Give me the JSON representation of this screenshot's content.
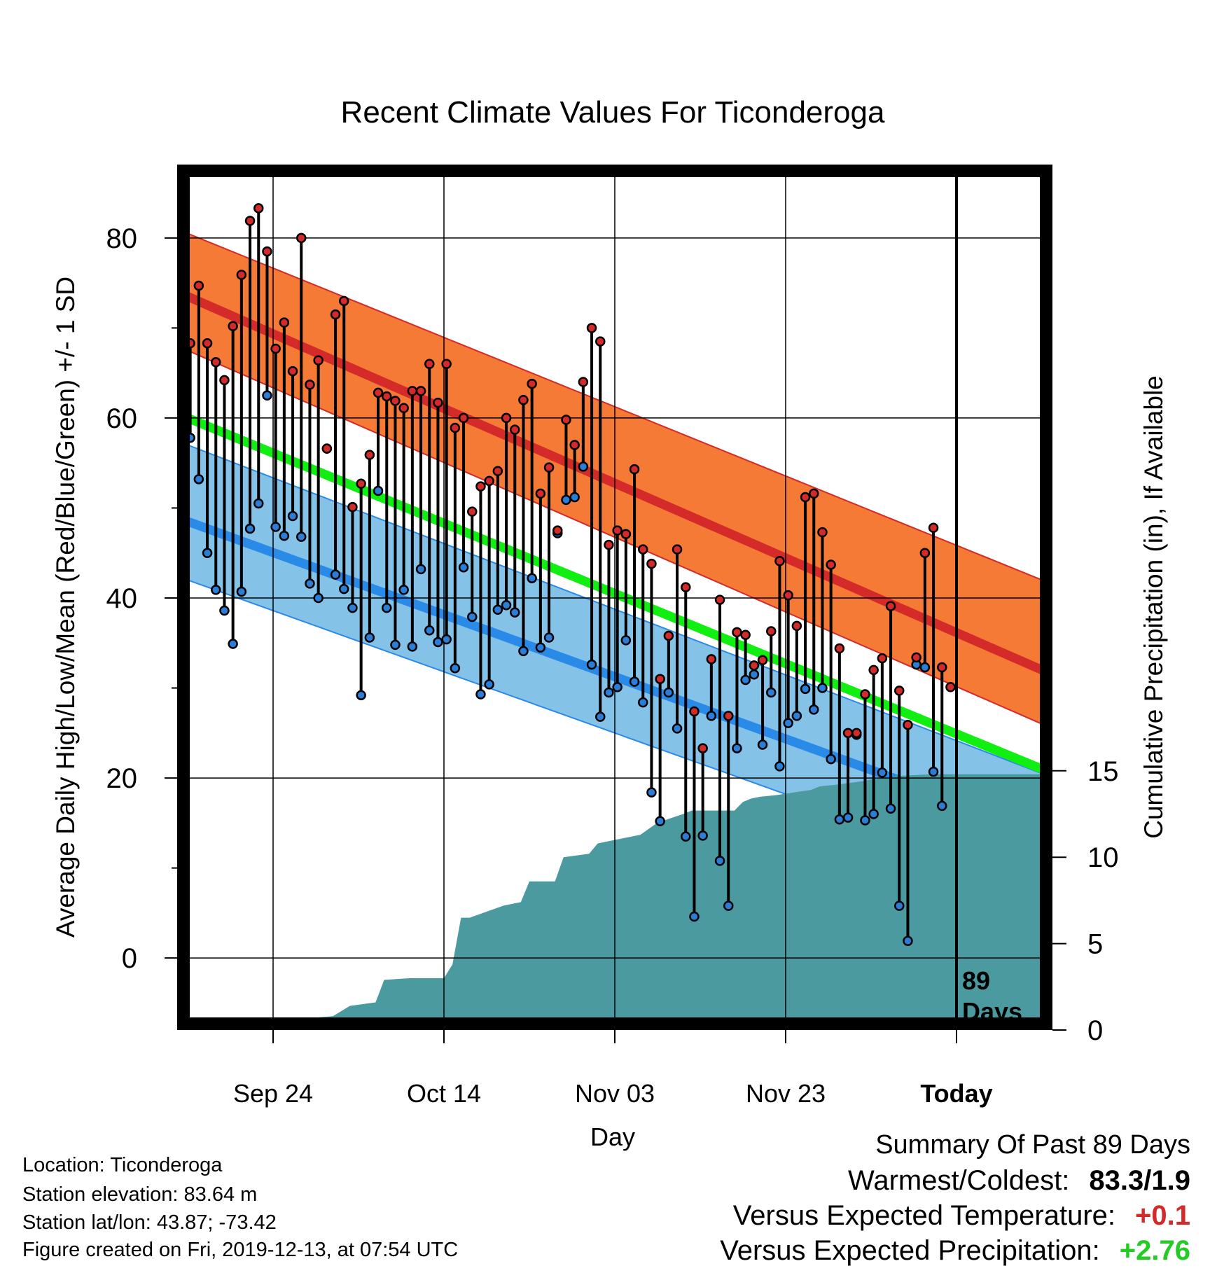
{
  "chart_data": {
    "type": "line",
    "title": "Recent Climate Values For Ticonderoga",
    "xlabel": "Day",
    "ylabel": "Average Daily High/Low/Mean (Red/Blue/Green) +/- 1 SD",
    "y2label": "Cumulative Precipitation (in), If Available",
    "x_ticks": [
      "Sep 24",
      "Oct 14",
      "Nov 03",
      "Nov 23",
      "Today"
    ],
    "x_tick_days": [
      10,
      30,
      50,
      70,
      90
    ],
    "x_range": [
      0,
      100
    ],
    "ylim": [
      -8,
      88
    ],
    "yticks": [
      0,
      20,
      40,
      60,
      80
    ],
    "y2lim": [
      0,
      50
    ],
    "y2ticks": [
      0,
      5,
      10,
      15
    ],
    "grid": true,
    "today_day": 90,
    "today_label": [
      "89",
      "Days"
    ],
    "normals": {
      "day": [
        0,
        100
      ],
      "high_mean": [
        73.5,
        32
      ],
      "high_upper": [
        80.5,
        42
      ],
      "high_lower": [
        67.5,
        26
      ],
      "mean": [
        60,
        21
      ],
      "low_mean": [
        48.5,
        14
      ],
      "low_upper": [
        57,
        20.5
      ],
      "low_lower": [
        42,
        8
      ]
    },
    "series": [
      {
        "name": "High",
        "color": "#d42a2a",
        "values": [
          68.3,
          74.7,
          68.3,
          66.2,
          64.2,
          70.2,
          75.9,
          81.9,
          83.3,
          78.5,
          67.7,
          70.6,
          65.2,
          80.0,
          63.7,
          66.4,
          56.6,
          71.5,
          73.0,
          50.1,
          52.7,
          55.9,
          62.8,
          62.4,
          61.9,
          61.1,
          63.0,
          63.0,
          66.0,
          61.7,
          66.0,
          58.9,
          60.0,
          49.6,
          52.4,
          53.0,
          54.1,
          60.0,
          58.7,
          62.0,
          63.8,
          51.6,
          54.5,
          47.5,
          59.8,
          57.0,
          64.0,
          70.0,
          68.5,
          45.9,
          47.5,
          47.1,
          54.3,
          45.4,
          43.8,
          31.0,
          35.8,
          45.4,
          41.2,
          27.4,
          23.3,
          33.2,
          39.8,
          26.9,
          36.2,
          35.9,
          32.5,
          33.1,
          36.3,
          44.1,
          40.3,
          36.9,
          51.2,
          51.6,
          47.3,
          43.7,
          34.4,
          25.0,
          25.0,
          29.3,
          32.0,
          33.3,
          39.1,
          29.7,
          25.9,
          33.4,
          45.0,
          47.8,
          32.3,
          30.1
        ]
      },
      {
        "name": "Low",
        "color": "#2a7ed8",
        "values": [
          57.8,
          53.2,
          45.0,
          40.9,
          38.6,
          34.9,
          40.7,
          47.7,
          50.5,
          62.5,
          47.9,
          46.9,
          49.1,
          46.8,
          41.6,
          40.0,
          56.6,
          42.6,
          41.0,
          38.9,
          29.2,
          35.6,
          51.9,
          38.9,
          34.8,
          40.9,
          34.6,
          43.2,
          36.4,
          35.1,
          35.4,
          32.2,
          43.4,
          37.9,
          29.3,
          30.4,
          38.7,
          39.2,
          38.4,
          34.1,
          42.2,
          34.5,
          35.6,
          47.2,
          50.9,
          51.2,
          54.6,
          32.6,
          26.8,
          29.5,
          30.1,
          35.3,
          30.7,
          28.4,
          18.4,
          15.2,
          29.5,
          25.5,
          13.5,
          4.6,
          13.6,
          26.9,
          10.8,
          5.8,
          23.3,
          30.9,
          31.5,
          23.7,
          29.5,
          21.3,
          26.1,
          26.9,
          29.9,
          27.6,
          30.0,
          22.1,
          15.4,
          15.6,
          24.8,
          15.3,
          16.0,
          20.6,
          16.6,
          5.8,
          1.9,
          32.6,
          32.3,
          20.7,
          16.9,
          null
        ]
      }
    ],
    "precipitation": {
      "name": "Cumulative Precipitation",
      "color": "#4a9aa0",
      "day": [
        9,
        10,
        12,
        17,
        19,
        22,
        23,
        26,
        30,
        31,
        32,
        33,
        37,
        39,
        40,
        43,
        44,
        47,
        48,
        49,
        52,
        53,
        55,
        58,
        59,
        64,
        65,
        66,
        67,
        69,
        73,
        74,
        76,
        79,
        80,
        82,
        83,
        87,
        88,
        100
      ],
      "cum": [
        0,
        0.4,
        0.6,
        0.8,
        1.4,
        1.6,
        2.9,
        3.0,
        3.0,
        3.8,
        6.5,
        6.5,
        7.2,
        7.4,
        8.6,
        8.6,
        10.0,
        10.2,
        10.8,
        10.9,
        11.2,
        11.3,
        12.0,
        12.5,
        12.7,
        12.7,
        13.2,
        13.4,
        13.5,
        13.6,
        13.9,
        14.1,
        14.2,
        14.4,
        14.5,
        14.6,
        14.7,
        14.8,
        14.8,
        14.8
      ]
    }
  },
  "info": {
    "location": "Location: Ticonderoga",
    "elevation": "Station elevation: 83.64 m",
    "latlon": "Station lat/lon: 43.87; -73.42",
    "created": "Figure created on Fri, 2019-12-13, at 07:54 UTC"
  },
  "summary": {
    "heading": "Summary Of Past 89 Days",
    "warmest_label": "Warmest/Coldest:",
    "warmest_value": "83.3/1.9",
    "temp_label": "Versus Expected Temperature:",
    "temp_value": "+0.1",
    "temp_color": "#d42a2a",
    "precip_label": "Versus Expected Precipitation:",
    "precip_value": "+2.76",
    "precip_color": "#22cc22"
  },
  "colors": {
    "high_band": "#f57a35",
    "high_mean": "#d42a2a",
    "overlap": "#941616",
    "mean": "#11ee11",
    "low_band": "#85c2e8",
    "low_mean": "#2a8ae8",
    "precip": "#4a9aa0"
  }
}
